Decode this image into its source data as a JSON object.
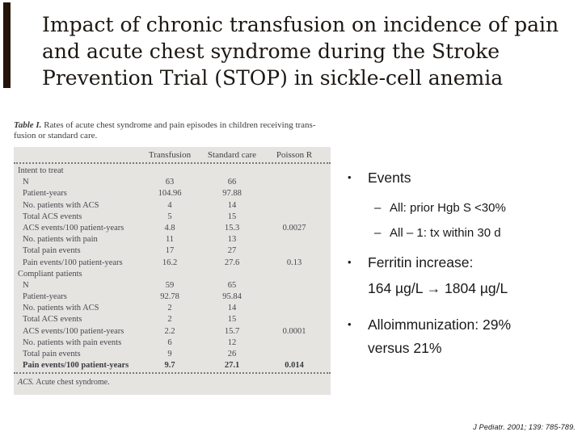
{
  "slide": {
    "title": "Impact of chronic transfusion on incidence of pain\nand acute chest syndrome during the Stroke\nPrevention Trial (STOP) in sickle-cell anemia",
    "citation": "J Pediatr. 2001; 139: 785-789."
  },
  "table": {
    "caption_label": "Table I.",
    "caption_line1": "Rates of acute chest syndrome and pain episodes in children receiving trans-",
    "caption_line2": "fusion or standard care.",
    "columns": [
      "Transfusion",
      "Standard care",
      "Poisson R"
    ],
    "rows": [
      {
        "label": "Intent to treat",
        "section": true
      },
      {
        "label": "N",
        "v1": "63",
        "v2": "66",
        "v3": ""
      },
      {
        "label": "Patient-years",
        "v1": "104.96",
        "v2": "97.88",
        "v3": ""
      },
      {
        "label": "No. patients with ACS",
        "v1": "4",
        "v2": "14",
        "v3": ""
      },
      {
        "label": "Total ACS events",
        "v1": "5",
        "v2": "15",
        "v3": ""
      },
      {
        "label": "ACS events/100 patient-years",
        "v1": "4.8",
        "v2": "15.3",
        "v3": "0.0027"
      },
      {
        "label": "No. patients with pain",
        "v1": "11",
        "v2": "13",
        "v3": ""
      },
      {
        "label": "Total pain events",
        "v1": "17",
        "v2": "27",
        "v3": ""
      },
      {
        "label": "Pain events/100 patient-years",
        "v1": "16.2",
        "v2": "27.6",
        "v3": "0.13"
      },
      {
        "label": "Compliant patients",
        "section": true
      },
      {
        "label": "N",
        "v1": "59",
        "v2": "65",
        "v3": ""
      },
      {
        "label": "Patient-years",
        "v1": "92.78",
        "v2": "95.84",
        "v3": ""
      },
      {
        "label": "No. patients with ACS",
        "v1": "2",
        "v2": "14",
        "v3": ""
      },
      {
        "label": "Total ACS events",
        "v1": "2",
        "v2": "15",
        "v3": ""
      },
      {
        "label": "ACS events/100 patient-years",
        "v1": "2.2",
        "v2": "15.7",
        "v3": "0.0001"
      },
      {
        "label": "No. patients with pain events",
        "v1": "6",
        "v2": "12",
        "v3": ""
      },
      {
        "label": "Total pain events",
        "v1": "9",
        "v2": "26",
        "v3": ""
      },
      {
        "label": "Pain events/100 patient-years",
        "v1": "9.7",
        "v2": "27.1",
        "v3": "0.014",
        "bold": true
      }
    ],
    "footnote_label": "ACS.",
    "footnote_text": "Acute chest syndrome."
  },
  "bullets": {
    "glyph_bullet": "•",
    "glyph_dash": "–",
    "item1": "Events",
    "item1_sub1": "All: prior Hgb S <30%",
    "item1_sub2": "All – 1: tx within 30 d",
    "item2": "Ferritin increase:",
    "item2_cont": "164 µg/L → 1804 µg/L",
    "item3": "Alloimmunization: 29%",
    "item3_cont": "versus 21%"
  },
  "colors": {
    "accent_bar": "#241309",
    "table_background": "#e6e4e1",
    "title_text": "#1c1814"
  }
}
